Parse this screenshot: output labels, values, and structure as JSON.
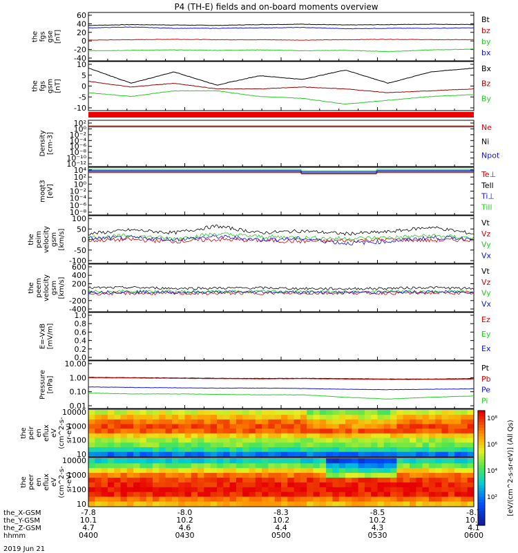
{
  "title": "P4 (TH-E) fields and on-board moments overview",
  "date_label": "2019 Jun 21",
  "colors": {
    "black": "#000000",
    "red": "#dd0000",
    "green": "#22cc22",
    "blue": "#1111dd",
    "darkred": "#990000"
  },
  "x_axis": {
    "row_labels": [
      "the_X-GSM",
      "the_Y-GSM",
      "the_Z-GSM",
      "hhmm"
    ],
    "columns": [
      {
        "x_gsm": "-7.8",
        "y_gsm": "10.1",
        "z_gsm": "4.7",
        "hhmm": "0400"
      },
      {
        "x_gsm": "-8.0",
        "y_gsm": "10.2",
        "z_gsm": "4.6",
        "hhmm": "0430"
      },
      {
        "x_gsm": "-8.3",
        "y_gsm": "10.2",
        "z_gsm": "4.4",
        "hhmm": "0500"
      },
      {
        "x_gsm": "-8.5",
        "y_gsm": "10.2",
        "z_gsm": "4.3",
        "hhmm": "0530"
      },
      {
        "x_gsm": "-8.7",
        "y_gsm": "10.1",
        "z_gsm": "4.1",
        "hhmm": "0600"
      }
    ]
  },
  "colorbar_label": "[eV/(cm^2-s-sr-eV)] (All Qs)",
  "colorbar_ticks": [
    "10⁸",
    "10⁶",
    "10⁴",
    "10²"
  ],
  "chart_data": [
    {
      "id": "fgs_gse",
      "type": "line",
      "ylabel": [
        "the",
        "fgs",
        "gse",
        "[nT]"
      ],
      "yticks": [
        60,
        40,
        20,
        0,
        -20,
        -40
      ],
      "ylim": [
        -40,
        65
      ],
      "series": [
        {
          "name": "Bt",
          "color": "black",
          "values": [
            40,
            42,
            41,
            40,
            42,
            43,
            41,
            42,
            43,
            42
          ]
        },
        {
          "name": "bz",
          "color": "red",
          "values": [
            4,
            5,
            6,
            5,
            5,
            4,
            5,
            6,
            5,
            5
          ]
        },
        {
          "name": "by",
          "color": "green",
          "values": [
            -22,
            -21,
            -20,
            -21,
            -20,
            -22,
            -21,
            -24,
            -20,
            -18
          ]
        },
        {
          "name": "bx",
          "color": "blue",
          "values": [
            34,
            36,
            33,
            33,
            34,
            35,
            32,
            33,
            33,
            34
          ]
        }
      ]
    },
    {
      "id": "fgs_gsm",
      "type": "line",
      "ylabel": [
        "the",
        "fgs",
        "gsm",
        "[nT]"
      ],
      "yticks": [
        10,
        5,
        0,
        -5,
        -10
      ],
      "ylim": [
        -12,
        11
      ],
      "series": [
        {
          "name": "Bx",
          "color": "black",
          "values": [
            9,
            1,
            7,
            0,
            5,
            3,
            8,
            1,
            7,
            9
          ]
        },
        {
          "name": "Bz",
          "color": "darkred",
          "values": [
            2,
            -1,
            1,
            -2,
            -2,
            -1,
            -2,
            -4,
            -3,
            -2
          ]
        },
        {
          "name": "By",
          "color": "green",
          "values": [
            -4,
            -6,
            -3,
            -3,
            -6,
            -7,
            -10,
            -8,
            -6,
            -5
          ]
        }
      ]
    },
    {
      "id": "density",
      "type": "line",
      "ylabel": [
        "Density",
        "[cm-3]"
      ],
      "yticks": [
        "10²",
        "10⁰",
        "10⁻²",
        "10⁻⁴",
        "10⁻⁶",
        "10⁻⁸",
        "10⁻¹⁰",
        "10⁻¹²"
      ],
      "series": [
        {
          "name": "Ne",
          "color": "red",
          "values": [
            0.45,
            0.46,
            0.47,
            0.48,
            0.5,
            0.5,
            0.5,
            0.52,
            0.5,
            0.48
          ]
        },
        {
          "name": "Ni",
          "color": "black",
          "values": [
            0.4,
            0.41,
            0.42,
            0.43,
            0.45,
            0.45,
            0.45,
            0.47,
            0.45,
            0.43
          ]
        },
        {
          "name": "Npot",
          "color": "blue",
          "values": []
        }
      ]
    },
    {
      "id": "moqt3",
      "type": "line",
      "ylabel": [
        "moqt3",
        "[eV]"
      ],
      "yticks": [
        "10⁴",
        "10²",
        "10⁰",
        "10⁻²",
        "10⁻⁴",
        "10⁻⁶",
        "10⁻⁸"
      ],
      "series": [
        {
          "name": "Te⊥",
          "color": "red",
          "values": [
            1200,
            1200,
            1100,
            1200,
            1100,
            1100,
            900,
            900,
            1000,
            1100
          ]
        },
        {
          "name": "Tell",
          "color": "black",
          "values": [
            1300,
            1300,
            1200,
            1300,
            1200,
            1200,
            1000,
            1000,
            1100,
            1200
          ]
        },
        {
          "name": "Ti⊥",
          "color": "blue",
          "values": [
            8000,
            8200,
            7800,
            8000,
            7800,
            8000,
            7500,
            7600,
            7800,
            8000
          ]
        },
        {
          "name": "Till",
          "color": "green",
          "values": [
            5000,
            5200,
            5000,
            5100,
            4900,
            5000,
            4800,
            4700,
            4900,
            5000
          ]
        }
      ]
    },
    {
      "id": "peim_vel",
      "type": "line",
      "ylabel": [
        "the",
        "peim",
        "velocity",
        "gsm",
        "[km/s]"
      ],
      "yticks": [
        100,
        50,
        0,
        -50,
        -100
      ],
      "ylim": [
        -110,
        110
      ],
      "series": [
        {
          "name": "Vt",
          "color": "black",
          "values": [
            30,
            50,
            35,
            70,
            35,
            45,
            30,
            40,
            65,
            30
          ]
        },
        {
          "name": "Vz",
          "color": "red",
          "values": [
            -5,
            0,
            -10,
            0,
            -5,
            -10,
            -5,
            0,
            -5,
            0
          ]
        },
        {
          "name": "Vy",
          "color": "green",
          "values": [
            10,
            20,
            5,
            30,
            15,
            10,
            5,
            10,
            20,
            10
          ]
        },
        {
          "name": "Vx",
          "color": "blue",
          "values": [
            5,
            10,
            0,
            15,
            0,
            5,
            -20,
            -10,
            10,
            5
          ]
        }
      ]
    },
    {
      "id": "peem_vel",
      "type": "line",
      "ylabel": [
        "the",
        "peem",
        "velocity",
        "gsm",
        "[km/s]"
      ],
      "yticks": [
        600,
        400,
        200,
        0,
        -200,
        -400
      ],
      "ylim": [
        -400,
        600
      ],
      "series": [
        {
          "name": "Vt",
          "color": "black",
          "values": [
            100,
            110,
            90,
            95,
            100,
            85,
            80,
            90,
            110,
            80
          ]
        },
        {
          "name": "Vz",
          "color": "red",
          "values": [
            -40,
            -30,
            -35,
            -30,
            -25,
            -30,
            -20,
            -25,
            -20,
            -25
          ]
        },
        {
          "name": "Vy",
          "color": "green",
          "values": [
            10,
            20,
            15,
            10,
            15,
            10,
            5,
            10,
            15,
            10
          ]
        },
        {
          "name": "Vx",
          "color": "blue",
          "values": [
            0,
            5,
            -5,
            0,
            5,
            0,
            -5,
            0,
            5,
            0
          ]
        }
      ]
    },
    {
      "id": "efield",
      "type": "line",
      "ylabel": [
        "E=-VxB",
        "[mV/m]"
      ],
      "yticks": [
        "1.0",
        "0.8",
        "0.6",
        "0.4",
        "0.2",
        "0.0"
      ],
      "ylim": [
        0,
        1
      ],
      "series": [
        {
          "name": "Ez",
          "color": "red",
          "values": []
        },
        {
          "name": "Ey",
          "color": "green",
          "values": []
        },
        {
          "name": "Ex",
          "color": "blue",
          "values": []
        }
      ]
    },
    {
      "id": "pressure",
      "type": "line",
      "ylabel": [
        "Pressure",
        "[nPa]"
      ],
      "yticks": [
        "10.00",
        "1.00",
        "0.10",
        "0.01"
      ],
      "ylim": [
        0.01,
        10
      ],
      "log": true,
      "series": [
        {
          "name": "Pt",
          "color": "black",
          "values": [
            1.05,
            1.0,
            0.95,
            0.9,
            0.88,
            0.9,
            0.85,
            0.8,
            0.8,
            0.85
          ]
        },
        {
          "name": "Pb",
          "color": "red",
          "values": [
            1.0,
            0.95,
            0.9,
            0.85,
            0.82,
            0.85,
            0.8,
            0.75,
            0.75,
            0.8
          ]
        },
        {
          "name": "Pe",
          "color": "blue",
          "values": [
            0.22,
            0.2,
            0.19,
            0.18,
            0.18,
            0.17,
            0.15,
            0.14,
            0.15,
            0.16
          ]
        },
        {
          "name": "Pi",
          "color": "green",
          "values": [
            0.08,
            0.07,
            0.07,
            0.065,
            0.06,
            0.06,
            0.04,
            0.03,
            0.04,
            0.05
          ]
        }
      ]
    },
    {
      "id": "peir_en",
      "type": "heatmap",
      "ylabel": [
        "the",
        "peir",
        "en",
        "eflux",
        "eV",
        "(cm^2-s-",
        "sr-eV)"
      ],
      "yticks": [
        10000,
        1000,
        100,
        10
      ],
      "ylim": [
        5,
        25000
      ],
      "rows_low_to_high": [
        0.25,
        0.45,
        0.55,
        0.6,
        0.72,
        0.88,
        0.9,
        0.85,
        0.75,
        0.65
      ]
    },
    {
      "id": "peer_en",
      "type": "heatmap",
      "ylabel": [
        "the",
        "peer",
        "en",
        "eflux",
        "eV",
        "(cm^2-s-",
        "sr-eV)"
      ],
      "yticks": [
        10000,
        1000,
        100,
        10
      ],
      "ylim": [
        5,
        25000
      ],
      "rows_low_to_high": [
        0.75,
        0.85,
        0.95,
        0.98,
        0.96,
        0.92,
        0.85,
        0.7,
        0.55,
        0.4
      ]
    }
  ]
}
